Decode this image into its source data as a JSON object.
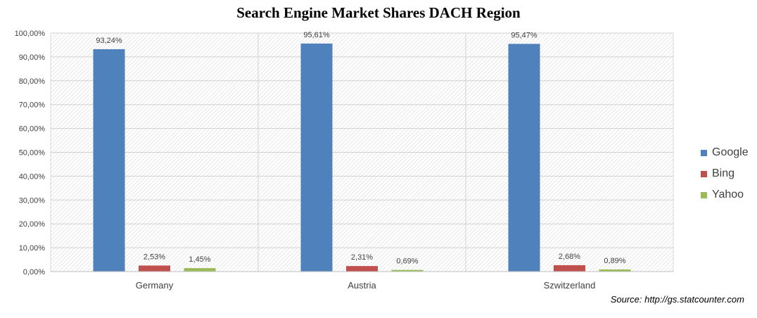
{
  "title": "Search Engine Market Shares DACH Region",
  "source": "Source: http://gs.statcounter.com",
  "chart_data": {
    "type": "bar",
    "title": "Search Engine Market Shares DACH Region",
    "categories": [
      "Germany",
      "Austria",
      "Szwitzerland"
    ],
    "series": [
      {
        "name": "Google",
        "color": "#4f81bd",
        "values": [
          93.24,
          95.61,
          95.47
        ],
        "labels": [
          "93,24%",
          "95,61%",
          "95,47%"
        ]
      },
      {
        "name": "Bing",
        "color": "#c0504d",
        "values": [
          2.53,
          2.31,
          2.68
        ],
        "labels": [
          "2,53%",
          "2,31%",
          "2,68%"
        ]
      },
      {
        "name": "Yahoo",
        "color": "#9bbb59",
        "values": [
          1.45,
          0.69,
          0.89
        ],
        "labels": [
          "1,45%",
          "0,69%",
          "0,89%"
        ]
      }
    ],
    "ylim": [
      0,
      100
    ],
    "yticks": [
      "0,00%",
      "10,00%",
      "20,00%",
      "30,00%",
      "40,00%",
      "50,00%",
      "60,00%",
      "70,00%",
      "80,00%",
      "90,00%",
      "100,00%"
    ],
    "grid": true,
    "legend": "right"
  }
}
